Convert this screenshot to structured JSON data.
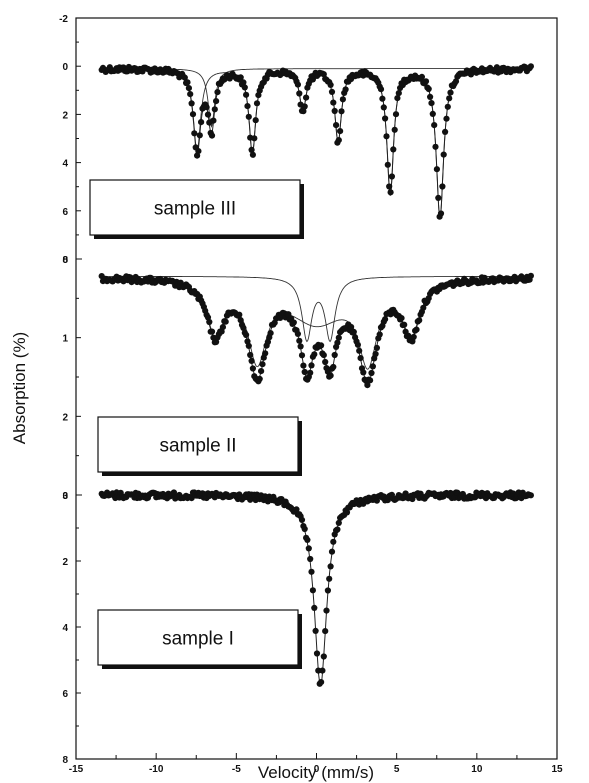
{
  "chart_data": {
    "type": "scatter",
    "xlabel": "Velocity (mm/s)",
    "ylabel": "Absorption (%)",
    "xlim": [
      -15,
      15
    ],
    "x_ticks": [
      "-15",
      "-10",
      "-5",
      "0",
      "5",
      "10",
      "15"
    ],
    "grid": false,
    "panels": [
      {
        "name": "sample III",
        "ylim": [
          -2,
          8
        ],
        "y_ticks": [
          "-2",
          "0",
          "2",
          "4",
          "6",
          "8"
        ],
        "baseline": 0.1,
        "lines": [
          {
            "pos": -7.45,
            "depth": 3.4,
            "width": 0.55
          },
          {
            "pos": -4.0,
            "depth": 3.5,
            "width": 0.5
          },
          {
            "pos": -0.85,
            "depth": 1.7,
            "width": 0.5
          },
          {
            "pos": 1.35,
            "depth": 3.0,
            "width": 0.5
          },
          {
            "pos": 4.6,
            "depth": 5.2,
            "width": 0.5
          },
          {
            "pos": 7.7,
            "depth": 6.2,
            "width": 0.55
          },
          {
            "pos": -6.55,
            "depth": 2.4,
            "width": 0.5
          }
        ],
        "components": [
          [
            {
              "pos": -7.45,
              "depth": 3.4,
              "width": 0.55
            },
            {
              "pos": -4.0,
              "depth": 3.5,
              "width": 0.5
            },
            {
              "pos": -0.85,
              "depth": 1.7,
              "width": 0.5
            },
            {
              "pos": 1.35,
              "depth": 3.0,
              "width": 0.5
            },
            {
              "pos": 4.6,
              "depth": 5.2,
              "width": 0.5
            },
            {
              "pos": 7.7,
              "depth": 6.2,
              "width": 0.55
            }
          ],
          [
            {
              "pos": -6.55,
              "depth": 2.4,
              "width": 0.5
            }
          ]
        ]
      },
      {
        "name": "sample II",
        "ylim": [
          0,
          3
        ],
        "y_ticks": [
          "0",
          "1",
          "2",
          "3"
        ],
        "baseline": 0.22,
        "lines": [
          {
            "pos": -6.3,
            "depth": 0.68,
            "width": 1.3
          },
          {
            "pos": -3.7,
            "depth": 1.15,
            "width": 1.4
          },
          {
            "pos": -0.6,
            "depth": 0.8,
            "width": 0.9
          },
          {
            "pos": 0.85,
            "depth": 0.75,
            "width": 0.9
          },
          {
            "pos": 3.2,
            "depth": 1.15,
            "width": 1.4
          },
          {
            "pos": 5.9,
            "depth": 0.68,
            "width": 1.3
          },
          {
            "pos": 0.0,
            "depth": 0.35,
            "width": 4.5
          }
        ],
        "components": [
          [
            {
              "pos": -0.6,
              "depth": 0.78,
              "width": 0.75
            },
            {
              "pos": 0.85,
              "depth": 0.78,
              "width": 0.75
            }
          ],
          [
            {
              "pos": -6.3,
              "depth": 0.65,
              "width": 1.3
            },
            {
              "pos": -3.7,
              "depth": 0.95,
              "width": 1.4
            },
            {
              "pos": 3.2,
              "depth": 0.95,
              "width": 1.4
            },
            {
              "pos": 5.9,
              "depth": 0.65,
              "width": 1.3
            },
            {
              "pos": 0.0,
              "depth": 0.55,
              "width": 4.5
            }
          ]
        ]
      },
      {
        "name": "sample I",
        "ylim": [
          0,
          8
        ],
        "y_ticks": [
          "0",
          "2",
          "4",
          "6",
          "8"
        ],
        "baseline": 0.0,
        "lines": [
          {
            "pos": 0.25,
            "depth": 5.75,
            "width": 0.95
          }
        ],
        "components": []
      }
    ]
  }
}
